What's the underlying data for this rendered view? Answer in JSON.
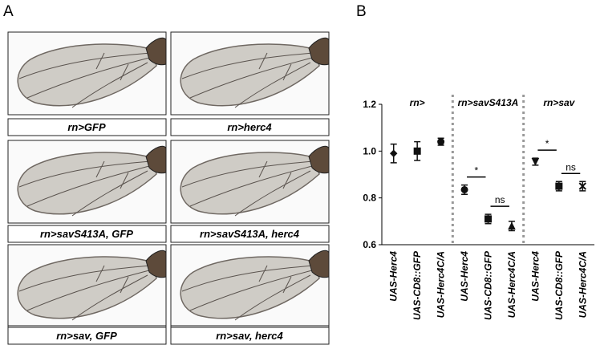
{
  "panel_a": {
    "label": "A",
    "captions": [
      "rn>GFP",
      "rn>herc4",
      "rn>savS413A, GFP",
      "rn>savS413A, herc4",
      "rn>sav, GFP",
      "rn>sav, herc4"
    ]
  },
  "panel_b": {
    "label": "B"
  },
  "chart_data": {
    "type": "errorbar",
    "groups": [
      "rn>",
      "rn>savS413A",
      "rn>sav"
    ],
    "categories": [
      "UAS-Herc4",
      "UAS-CD8::GFP",
      "UAS-Herc4C/A",
      "UAS-Herc4",
      "UAS-CD8::GFP",
      "UAS-Herc4C/A",
      "UAS-Herc4",
      "UAS-CD8::GFP",
      "UAS-Herc4C/A"
    ],
    "values": [
      0.99,
      1.0,
      1.04,
      0.835,
      0.71,
      0.68,
      0.955,
      0.85,
      0.85
    ],
    "errors": [
      0.04,
      0.04,
      0.015,
      0.02,
      0.02,
      0.02,
      0.015,
      0.02,
      0.02
    ],
    "markers": [
      "diamond",
      "square",
      "circle",
      "circle",
      "square",
      "triangle",
      "triangle-down",
      "square",
      "cross"
    ],
    "color": "#111111",
    "ylim": [
      0.6,
      1.2
    ],
    "yticks": [
      0.6,
      0.8,
      {
        "value": 1,
        "label": "1.0"
      },
      1.2
    ],
    "annotations": [
      {
        "text": "*",
        "between": [
          3,
          4
        ]
      },
      {
        "text": "ns",
        "between": [
          4,
          5
        ]
      },
      {
        "text": "*",
        "between": [
          6,
          7
        ]
      },
      {
        "text": "ns",
        "between": [
          7,
          8
        ]
      }
    ]
  }
}
